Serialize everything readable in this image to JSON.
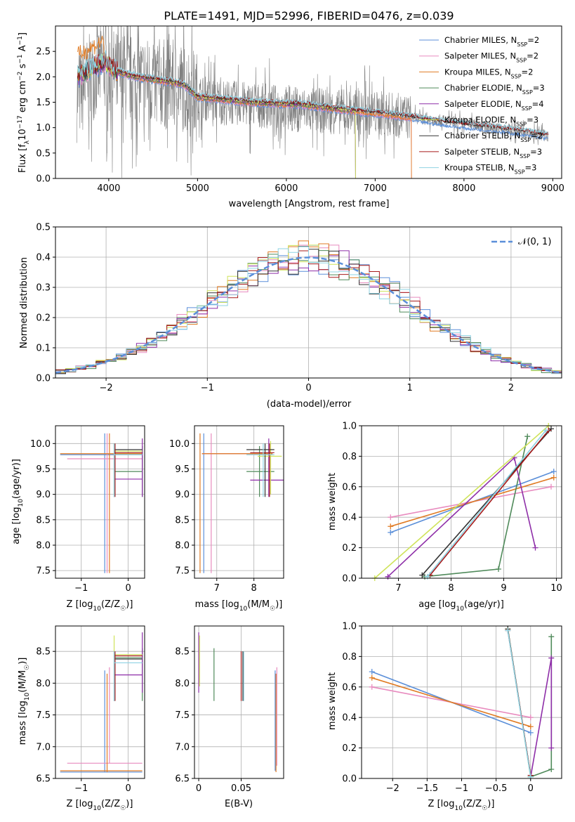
{
  "colors": {
    "Chabrier MILES": "#5b8fd9",
    "Salpeter MILES": "#e88bbf",
    "Kroupa MILES": "#e07b24",
    "Chabrier ELODIE": "#4f8a5a",
    "Salpeter ELODIE": "#8e2ea8",
    "Kroupa ELODIE": "#cfe35a",
    "Chabrier STELIB": "#333333",
    "Salpeter STELIB": "#a61b1b",
    "Kroupa STELIB": "#8fd3e3",
    "data": "#808080",
    "normal": "#5b8fd9"
  },
  "chart_data": [
    {
      "type": "line",
      "title": "PLATE=1491, MJD=52996, FIBERID=0476, z=0.039",
      "xlabel": "wavelength [Angstrom, rest frame]",
      "ylabel": "Flux [f_λ10^-17 erg cm^-2 s^-1 A^-1]",
      "xlim": [
        3400,
        9100
      ],
      "ylim": [
        0,
        3.0
      ],
      "xticks": [
        4000,
        5000,
        6000,
        7000,
        8000,
        9000
      ],
      "yticks": [
        0.0,
        0.5,
        1.0,
        1.5,
        2.0,
        2.5
      ],
      "legend": [
        "Chabrier MILES, N_SSP=2",
        "Salpeter MILES, N_SSP=2",
        "Kroupa MILES, N_SSP=2",
        "Chabrier ELODIE, N_SSP=3",
        "Salpeter ELODIE, N_SSP=4",
        "Kroupa ELODIE, N_SSP=3",
        "Chabrier STELIB, N_SSP=2",
        "Salpeter STELIB, N_SSP=3",
        "Kroupa STELIB, N_SSP=3"
      ],
      "legend_position": "top-right",
      "model_continuum": {
        "x": [
          3650,
          3800,
          3950,
          4100,
          4300,
          4500,
          4700,
          4850,
          5000,
          5300,
          5600,
          5900,
          6200,
          6500,
          6800,
          7100,
          7400,
          7700,
          8000,
          8300,
          8600,
          8900
        ],
        "y": [
          2.0,
          2.15,
          2.3,
          2.1,
          2.0,
          1.95,
          1.9,
          1.85,
          1.6,
          1.55,
          1.5,
          1.47,
          1.45,
          1.38,
          1.32,
          1.27,
          1.2,
          1.12,
          1.05,
          1.0,
          0.93,
          0.85
        ]
      },
      "data_continuum": {
        "x": [
          3650,
          3800,
          3950,
          4100,
          4300,
          4500,
          4700,
          4850,
          5000,
          5300,
          5600,
          5900,
          6200,
          6500,
          6800,
          7100,
          7400,
          7700,
          8000,
          8300,
          8600,
          8900
        ],
        "y": [
          1.6,
          2.0,
          2.2,
          2.0,
          1.95,
          1.9,
          1.85,
          1.8,
          1.6,
          1.5,
          1.45,
          1.4,
          1.35,
          1.32,
          1.3,
          1.28,
          1.2,
          1.15,
          1.08,
          1.0,
          0.92,
          0.85
        ]
      }
    },
    {
      "type": "line",
      "xlabel": "(data-model)/error",
      "ylabel": "Normed distribution",
      "xlim": [
        -2.5,
        2.5
      ],
      "ylim": [
        0,
        0.5
      ],
      "xticks": [
        -2,
        -1,
        0,
        1,
        2
      ],
      "yticks": [
        0.0,
        0.1,
        0.2,
        0.3,
        0.4,
        0.5
      ],
      "legend": [
        "𝒩(0, 1)"
      ],
      "legend_position": "top-right",
      "bin_width": 0.1
    },
    {
      "type": "scatter",
      "xlabel": "Z [log10(Z/Z☉)]",
      "ylabel": "age  [log10(age/yr)]",
      "xlim": [
        -1.55,
        0.35
      ],
      "ylim": [
        7.35,
        10.35
      ],
      "xticks": [
        -1,
        0
      ],
      "yticks": [
        7.5,
        8.0,
        8.5,
        9.0,
        9.5,
        10.0
      ]
    },
    {
      "type": "scatter",
      "xlabel": "mass [log10(M/M☉)]",
      "xlim": [
        6.4,
        8.8
      ],
      "ylim": [
        7.35,
        10.35
      ],
      "xticks": [
        7,
        8
      ],
      "yticks": [
        7.5,
        8.0,
        8.5,
        9.0,
        9.5,
        10.0
      ]
    },
    {
      "type": "line",
      "xlabel": "age  [log10(age/yr)]",
      "ylabel": "mass weight",
      "xlim": [
        6.3,
        10.1
      ],
      "ylim": [
        0,
        1
      ],
      "xticks": [
        7,
        8,
        9,
        10
      ],
      "yticks": [
        0.0,
        0.2,
        0.4,
        0.6,
        0.8,
        1.0
      ],
      "series": [
        {
          "name": "Chabrier MILES",
          "x": [
            6.85,
            9.95
          ],
          "y": [
            0.3,
            0.7
          ]
        },
        {
          "name": "Salpeter MILES",
          "x": [
            6.85,
            9.9
          ],
          "y": [
            0.4,
            0.6
          ]
        },
        {
          "name": "Kroupa MILES",
          "x": [
            6.85,
            9.95
          ],
          "y": [
            0.34,
            0.66
          ]
        },
        {
          "name": "Chabrier ELODIE",
          "x": [
            7.5,
            8.9,
            9.45
          ],
          "y": [
            0.01,
            0.06,
            0.93
          ]
        },
        {
          "name": "Salpeter ELODIE",
          "x": [
            6.8,
            9.2,
            9.6
          ],
          "y": [
            0.01,
            0.79,
            0.2
          ]
        },
        {
          "name": "Kroupa ELODIE",
          "x": [
            6.55,
            9.85
          ],
          "y": [
            0.0,
            1.0
          ]
        },
        {
          "name": "Chabrier STELIB",
          "x": [
            7.45,
            9.9
          ],
          "y": [
            0.02,
            0.98
          ]
        },
        {
          "name": "Salpeter STELIB",
          "x": [
            7.6,
            9.85
          ],
          "y": [
            0.02,
            0.97
          ]
        },
        {
          "name": "Kroupa STELIB",
          "x": [
            7.55,
            9.8
          ],
          "y": [
            0.01,
            0.97
          ]
        }
      ]
    },
    {
      "type": "scatter",
      "xlabel": "Z [log10(Z/Z☉)]",
      "ylabel": "mass [log10(M/M☉)]",
      "xlim": [
        -1.55,
        0.35
      ],
      "ylim": [
        6.5,
        8.9
      ],
      "xticks": [
        -1,
        0
      ],
      "yticks": [
        6.5,
        7.0,
        7.5,
        8.0,
        8.5
      ]
    },
    {
      "type": "scatter",
      "xlabel": "E(B-V)",
      "xlim": [
        -0.005,
        0.1
      ],
      "ylim": [
        6.5,
        8.9
      ],
      "xticks": [
        0.0,
        0.05
      ],
      "yticks": [
        6.5,
        7.0,
        7.5,
        8.0,
        8.5
      ]
    },
    {
      "type": "line",
      "xlabel": "Z [log10(Z/Z☉)]",
      "ylabel": "mass weight",
      "xlim": [
        -2.45,
        0.45
      ],
      "ylim": [
        0,
        1
      ],
      "xticks": [
        -2.0,
        -1.5,
        -1.0,
        -0.5,
        0.0
      ],
      "yticks": [
        0.0,
        0.2,
        0.4,
        0.6,
        0.8,
        1.0
      ],
      "series": [
        {
          "name": "Chabrier MILES",
          "x": [
            -2.3,
            0.0
          ],
          "y": [
            0.7,
            0.3
          ]
        },
        {
          "name": "Salpeter MILES",
          "x": [
            -2.3,
            0.0
          ],
          "y": [
            0.6,
            0.4
          ]
        },
        {
          "name": "Kroupa MILES",
          "x": [
            -2.3,
            0.0
          ],
          "y": [
            0.66,
            0.34
          ]
        },
        {
          "name": "Chabrier ELODIE",
          "x": [
            0.0,
            0.3,
            0.3
          ],
          "y": [
            0.01,
            0.06,
            0.93
          ]
        },
        {
          "name": "Salpeter ELODIE",
          "x": [
            0.0,
            0.3,
            0.3
          ],
          "y": [
            0.01,
            0.79,
            0.2
          ]
        },
        {
          "name": "Kroupa ELODIE",
          "x": [
            -0.33,
            0.0
          ],
          "y": [
            0.98,
            0.01
          ]
        },
        {
          "name": "Chabrier STELIB",
          "x": [
            -0.33,
            0.0
          ],
          "y": [
            0.98,
            0.02
          ]
        },
        {
          "name": "Salpeter STELIB",
          "x": [
            -0.33,
            0.0
          ],
          "y": [
            0.97,
            0.02
          ]
        },
        {
          "name": "Kroupa STELIB",
          "x": [
            -0.33,
            0.0
          ],
          "y": [
            0.97,
            0.01
          ]
        }
      ]
    }
  ]
}
